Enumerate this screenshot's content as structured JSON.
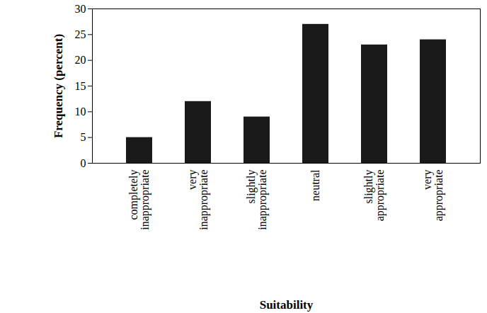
{
  "chart_data": {
    "type": "bar",
    "x_label": "Suitability",
    "y_label": "Frequency (percent)",
    "categories": [
      "completely inappropriate",
      "very inappropriate",
      "slightly inappropriate",
      "neutral",
      "slightly appropriate",
      "very appropriate"
    ],
    "values": [
      5,
      12,
      9,
      27,
      23,
      24
    ],
    "color": "#1a1a1a",
    "ylim": [
      0,
      30
    ],
    "yticks": [
      0,
      5,
      10,
      15,
      20,
      25,
      30
    ],
    "grid": false
  }
}
